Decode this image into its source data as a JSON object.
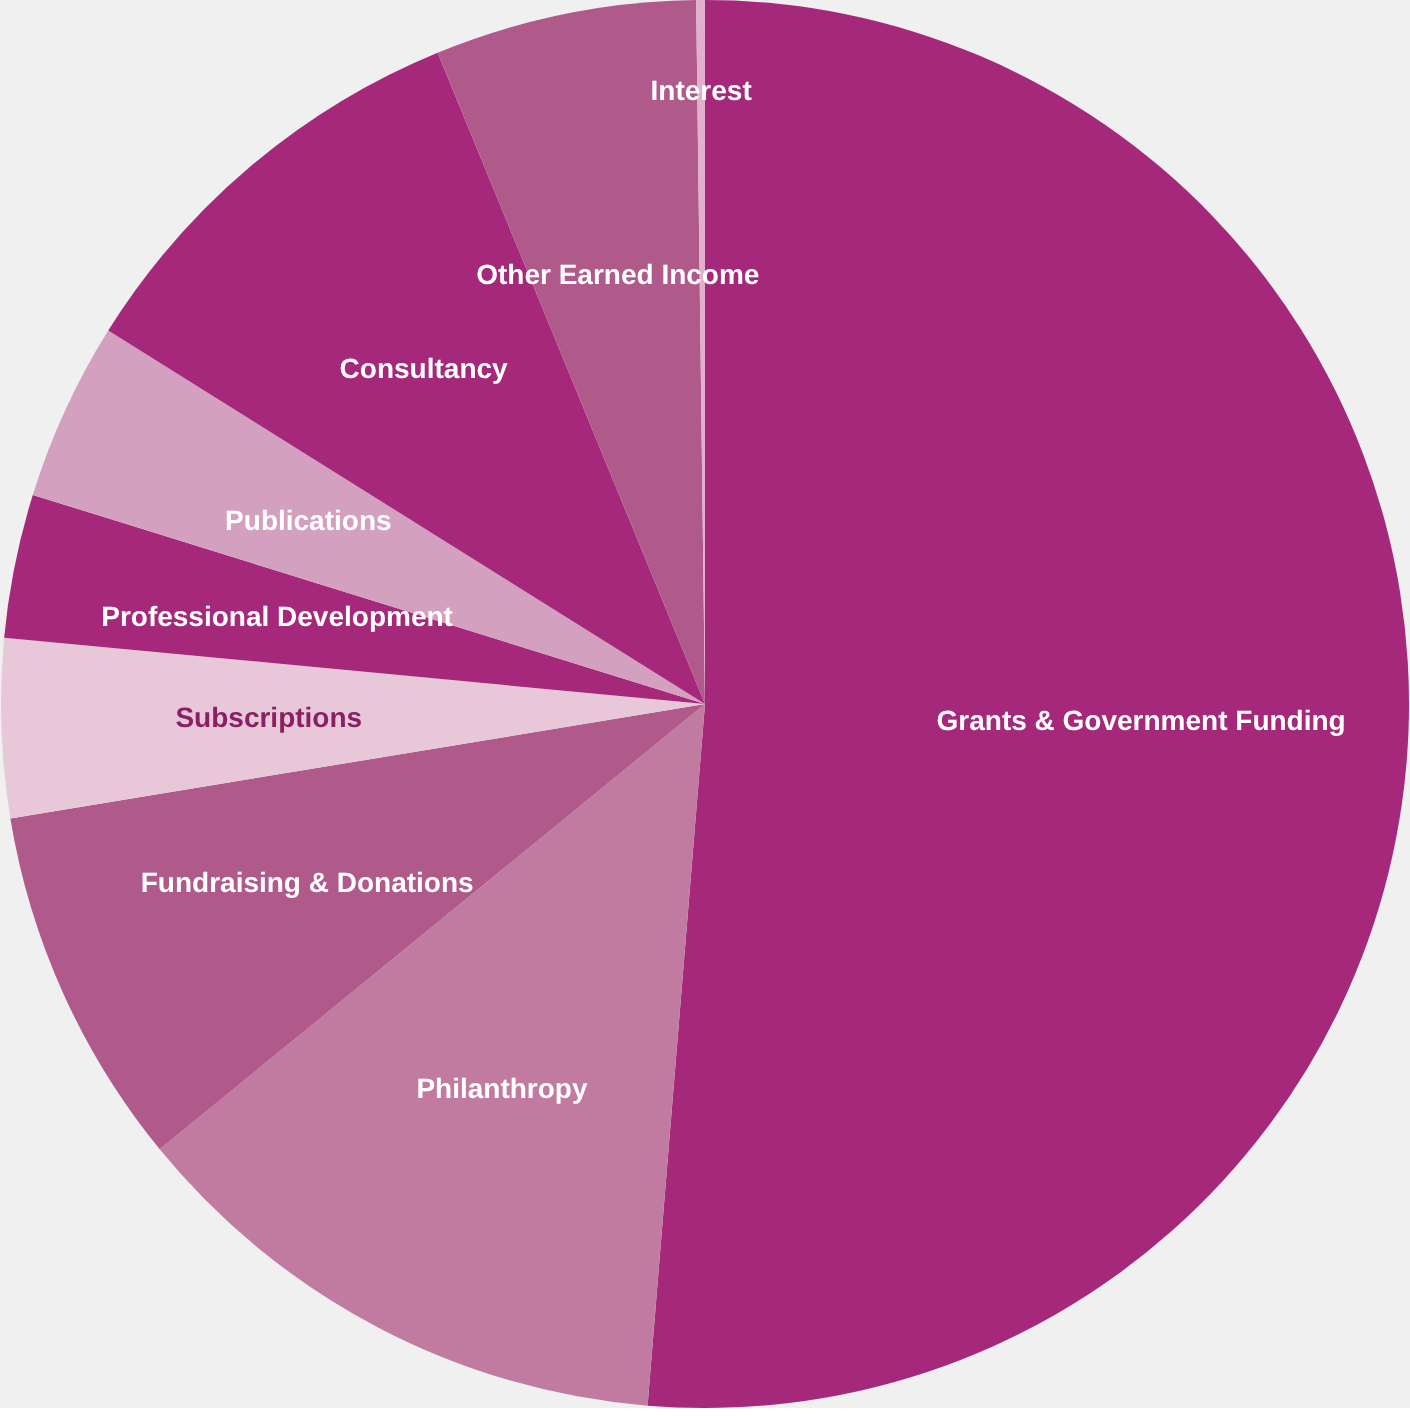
{
  "chart_data": {
    "type": "pie",
    "categories": [
      "Grants & Government Funding",
      "Philanthropy",
      "Fundraising & Donations",
      "Subscriptions",
      "Professional Development",
      "Publications",
      "Consultancy",
      "Other Earned Income",
      "Interest"
    ],
    "values": [
      51.3,
      12.8,
      8.3,
      4.1,
      3.3,
      4.1,
      9.9,
      6.0,
      0.2
    ],
    "colors": [
      "#a6287a",
      "#c17ba0",
      "#b05a8c",
      "#e8c8d8",
      "#a6287a",
      "#d4a0bf",
      "#a6287a",
      "#b05a8c",
      "#e0b0cc"
    ],
    "legend": false
  }
}
